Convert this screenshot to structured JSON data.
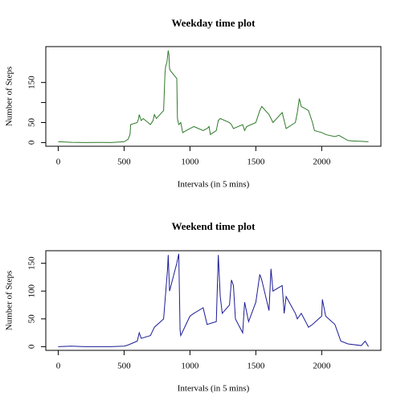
{
  "chart_data": [
    {
      "type": "line",
      "title": "Weekday time plot",
      "xlabel": "Intervals (in 5 mins)",
      "ylabel": "Number of Steps",
      "color": "#2f7a2a",
      "xlim": [
        -94.2,
        2449.2
      ],
      "xticks": [
        0,
        500,
        1000,
        1500,
        2000
      ],
      "ylim": [
        -9.2,
        239.6
      ],
      "yticks": [
        0,
        50,
        {
          "value": 100,
          "label": null
        },
        150
      ],
      "x": [
        0,
        100,
        200,
        300,
        400,
        500,
        530,
        545,
        550,
        600,
        610,
        615,
        630,
        645,
        700,
        720,
        730,
        745,
        800,
        810,
        815,
        825,
        835,
        840,
        845,
        850,
        900,
        905,
        915,
        930,
        945,
        1000,
        1030,
        1100,
        1130,
        1145,
        1155,
        1200,
        1215,
        1230,
        1300,
        1315,
        1330,
        1400,
        1415,
        1430,
        1500,
        1530,
        1545,
        1600,
        1630,
        1700,
        1730,
        1800,
        1815,
        1830,
        1845,
        1900,
        1930,
        1945,
        2000,
        2030,
        2100,
        2130,
        2200,
        2230,
        2300,
        2355
      ],
      "values": [
        2,
        0.5,
        0.2,
        0.3,
        0.2,
        2,
        8,
        20,
        45,
        50,
        60,
        70,
        55,
        60,
        45,
        55,
        70,
        60,
        80,
        170,
        190,
        200,
        230,
        220,
        185,
        180,
        160,
        60,
        45,
        50,
        25,
        35,
        40,
        30,
        35,
        40,
        20,
        30,
        55,
        60,
        50,
        45,
        35,
        45,
        30,
        40,
        50,
        80,
        90,
        70,
        50,
        75,
        35,
        50,
        75,
        110,
        90,
        80,
        50,
        30,
        25,
        20,
        15,
        18,
        5,
        4,
        3,
        2
      ]
    },
    {
      "type": "line",
      "title": "Weekend time plot",
      "xlabel": "Intervals (in 5 mins)",
      "ylabel": "Number of Steps",
      "color": "#1c1c96",
      "xlim": [
        -94.2,
        2449.2
      ],
      "xticks": [
        0,
        500,
        1000,
        1500,
        2000
      ],
      "ylim": [
        -6.6,
        172.6
      ],
      "yticks": [
        0,
        50,
        100,
        150
      ],
      "x": [
        0,
        100,
        200,
        400,
        500,
        530,
        600,
        615,
        630,
        700,
        730,
        800,
        830,
        835,
        845,
        900,
        915,
        925,
        930,
        1000,
        1030,
        1100,
        1130,
        1200,
        1215,
        1230,
        1245,
        1300,
        1315,
        1330,
        1345,
        1400,
        1415,
        1445,
        1500,
        1530,
        1545,
        1600,
        1615,
        1630,
        1700,
        1715,
        1730,
        1800,
        1815,
        1845,
        1900,
        1930,
        2000,
        2005,
        2030,
        2100,
        2130,
        2145,
        2200,
        2300,
        2330,
        2355
      ],
      "values": [
        0,
        1,
        0,
        0,
        1,
        3,
        10,
        25,
        15,
        20,
        35,
        50,
        140,
        165,
        100,
        150,
        167,
        30,
        20,
        55,
        60,
        70,
        40,
        45,
        165,
        90,
        60,
        75,
        120,
        110,
        50,
        25,
        80,
        45,
        80,
        130,
        120,
        65,
        140,
        100,
        110,
        60,
        90,
        60,
        50,
        60,
        35,
        40,
        55,
        85,
        55,
        40,
        20,
        10,
        5,
        2,
        10,
        0
      ]
    }
  ]
}
